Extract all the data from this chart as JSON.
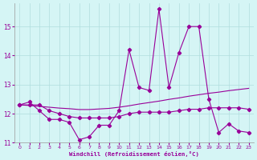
{
  "xlabel": "Windchill (Refroidissement éolien,°C)",
  "x": [
    0,
    1,
    2,
    3,
    4,
    5,
    6,
    7,
    8,
    9,
    10,
    11,
    12,
    13,
    14,
    15,
    16,
    17,
    18,
    19,
    20,
    21,
    22,
    23
  ],
  "line1": [
    12.3,
    12.4,
    12.1,
    11.8,
    11.8,
    11.7,
    11.1,
    11.2,
    11.6,
    11.6,
    12.1,
    14.2,
    12.9,
    12.8,
    15.6,
    12.9,
    14.1,
    15.0,
    15.0,
    12.5,
    11.35,
    11.65,
    11.4,
    11.35
  ],
  "line2": [
    12.3,
    12.28,
    12.25,
    12.22,
    12.19,
    12.17,
    12.14,
    12.14,
    12.16,
    12.18,
    12.22,
    12.27,
    12.33,
    12.38,
    12.43,
    12.49,
    12.54,
    12.6,
    12.65,
    12.7,
    12.74,
    12.79,
    12.83,
    12.87
  ],
  "line3": [
    12.3,
    12.3,
    12.3,
    12.1,
    12.0,
    11.9,
    11.85,
    11.85,
    11.85,
    11.85,
    11.9,
    12.0,
    12.05,
    12.05,
    12.05,
    12.05,
    12.1,
    12.15,
    12.15,
    12.2,
    12.2,
    12.2,
    12.2,
    12.15
  ],
  "line_color": "#990099",
  "bg_color": "#d5f5f5",
  "grid_color": "#b0dede",
  "ylim": [
    11.0,
    15.8
  ],
  "xlim": [
    -0.5,
    23.5
  ],
  "yticks": [
    11,
    12,
    13,
    14,
    15
  ],
  "xticks": [
    0,
    1,
    2,
    3,
    4,
    5,
    6,
    7,
    8,
    9,
    10,
    11,
    12,
    13,
    14,
    15,
    16,
    17,
    18,
    19,
    20,
    21,
    22,
    23
  ],
  "marker": "D",
  "markersize": 2.2,
  "linewidth": 0.8
}
